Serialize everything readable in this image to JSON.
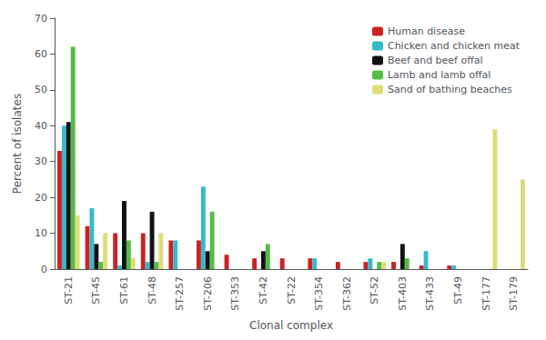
{
  "chart_data": {
    "type": "bar",
    "categories": [
      "ST-21",
      "ST-45",
      "ST-61",
      "ST-48",
      "ST-257",
      "ST-206",
      "ST-353",
      "ST-42",
      "ST-22",
      "ST-354",
      "ST-362",
      "ST-52",
      "ST-403",
      "ST-433",
      "ST-49",
      "ST-177",
      "ST-179"
    ],
    "series": [
      {
        "name": "Human disease",
        "color": "#cc2222",
        "values": [
          33,
          12,
          10,
          10,
          8,
          8,
          4,
          3,
          3,
          3,
          2,
          2,
          2,
          1,
          1,
          0,
          0
        ]
      },
      {
        "name": "Chicken and chicken meat",
        "color": "#33bbcc",
        "values": [
          40,
          17,
          1,
          2,
          8,
          23,
          0,
          0,
          0,
          3,
          0,
          3,
          0,
          5,
          1,
          0,
          0
        ]
      },
      {
        "name": "Beef and beef offal",
        "color": "#111111",
        "values": [
          41,
          7,
          19,
          16,
          0,
          5,
          0,
          5,
          0,
          0,
          0,
          0,
          7,
          0,
          0,
          0,
          0
        ]
      },
      {
        "name": "Lamb and lamb offal",
        "color": "#55bb44",
        "values": [
          62,
          2,
          8,
          2,
          0,
          16,
          0,
          7,
          0,
          0,
          0,
          2,
          3,
          0,
          0,
          0,
          0
        ]
      },
      {
        "name": "Sand of bathing beaches",
        "color": "#dddd77",
        "values": [
          15,
          10,
          3,
          10,
          0,
          0,
          0,
          0,
          0,
          0,
          0,
          2,
          0,
          0,
          0,
          39,
          25
        ]
      }
    ],
    "xlabel": "Clonal complex",
    "ylabel": "Percent of isolates",
    "ylim": [
      0,
      70
    ],
    "yticks": [
      0,
      10,
      20,
      30,
      40,
      50,
      60,
      70
    ],
    "legend": "upper right",
    "grid": false
  }
}
